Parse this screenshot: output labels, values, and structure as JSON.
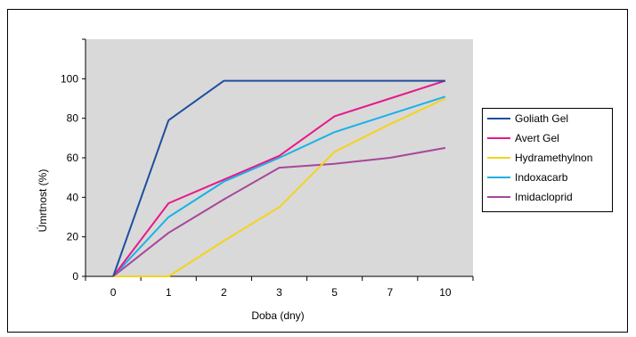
{
  "chart_data": {
    "type": "line",
    "title": "",
    "xlabel": "Doba (dny)",
    "ylabel": "Úmrtnost (%)",
    "categories": [
      "0",
      "1",
      "2",
      "3",
      "5",
      "7",
      "10"
    ],
    "ylim": [
      0,
      120
    ],
    "yticks": [
      0,
      20,
      40,
      60,
      80,
      100
    ],
    "grid": false,
    "legend_position": "right",
    "plot_background": "#d9d9d9",
    "series": [
      {
        "name": "Goliath Gel",
        "color": "#1f4e9e",
        "values": [
          0,
          79,
          99,
          99,
          99,
          99,
          99
        ]
      },
      {
        "name": "Avert Gel",
        "color": "#e6198a",
        "values": [
          0,
          37,
          49,
          61,
          81,
          90,
          99
        ]
      },
      {
        "name": "Hydramethylnon",
        "color": "#f5d31a",
        "values": [
          0,
          0,
          18,
          35,
          63,
          77,
          90
        ]
      },
      {
        "name": "Indoxacarb",
        "color": "#1ab2e6",
        "values": [
          0,
          30,
          48,
          60,
          73,
          82,
          91
        ]
      },
      {
        "name": "Imidacloprid",
        "color": "#a6479c",
        "values": [
          0,
          22,
          39,
          55,
          57,
          60,
          65
        ]
      }
    ]
  }
}
